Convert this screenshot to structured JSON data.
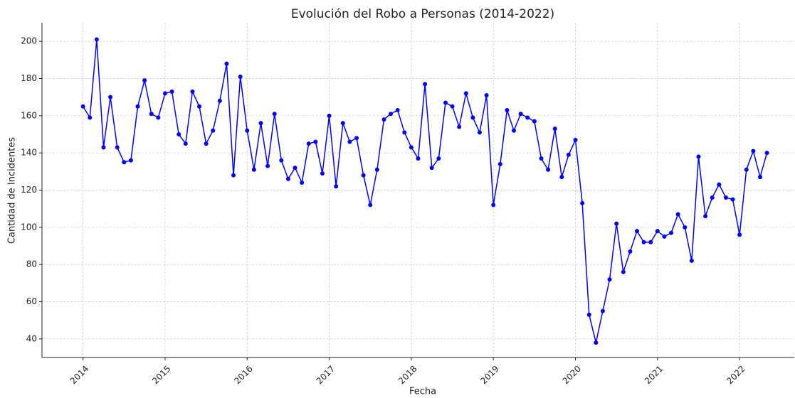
{
  "chart_data": {
    "type": "line",
    "title": "Evolución del Robo a Personas (2014-2022)",
    "xlabel": "Fecha",
    "ylabel": "Cantidad de Incidentes",
    "x": [
      "2014-01",
      "2014-02",
      "2014-03",
      "2014-04",
      "2014-05",
      "2014-06",
      "2014-07",
      "2014-08",
      "2014-09",
      "2014-10",
      "2014-11",
      "2014-12",
      "2015-01",
      "2015-02",
      "2015-03",
      "2015-04",
      "2015-05",
      "2015-06",
      "2015-07",
      "2015-08",
      "2015-09",
      "2015-10",
      "2015-11",
      "2015-12",
      "2016-01",
      "2016-02",
      "2016-03",
      "2016-04",
      "2016-05",
      "2016-06",
      "2016-07",
      "2016-08",
      "2016-09",
      "2016-10",
      "2016-11",
      "2016-12",
      "2017-01",
      "2017-02",
      "2017-03",
      "2017-04",
      "2017-05",
      "2017-06",
      "2017-07",
      "2017-08",
      "2017-09",
      "2017-10",
      "2017-11",
      "2017-12",
      "2018-01",
      "2018-02",
      "2018-03",
      "2018-04",
      "2018-05",
      "2018-06",
      "2018-07",
      "2018-08",
      "2018-09",
      "2018-10",
      "2018-11",
      "2018-12",
      "2019-01",
      "2019-02",
      "2019-03",
      "2019-04",
      "2019-05",
      "2019-06",
      "2019-07",
      "2019-08",
      "2019-09",
      "2019-10",
      "2019-11",
      "2019-12",
      "2020-01",
      "2020-02",
      "2020-03",
      "2020-04",
      "2020-05",
      "2020-06",
      "2020-07",
      "2020-08",
      "2020-09",
      "2020-10",
      "2020-11",
      "2020-12",
      "2021-01",
      "2021-02",
      "2021-03",
      "2021-04",
      "2021-05",
      "2021-06",
      "2021-07",
      "2021-08",
      "2021-09",
      "2021-10",
      "2021-11",
      "2021-12",
      "2022-01",
      "2022-02",
      "2022-03",
      "2022-04",
      "2022-05"
    ],
    "series": [
      {
        "name": "Robo a Personas",
        "color": "#0000ff",
        "values": [
          165,
          159,
          201,
          143,
          170,
          143,
          135,
          136,
          165,
          179,
          161,
          159,
          172,
          173,
          150,
          145,
          173,
          165,
          145,
          152,
          168,
          188,
          128,
          181,
          152,
          131,
          156,
          133,
          161,
          136,
          126,
          132,
          124,
          145,
          146,
          129,
          160,
          122,
          156,
          146,
          148,
          128,
          112,
          131,
          158,
          161,
          163,
          151,
          143,
          137,
          177,
          132,
          137,
          167,
          165,
          154,
          172,
          159,
          151,
          171,
          112,
          134,
          163,
          152,
          161,
          159,
          157,
          137,
          131,
          153,
          127,
          139,
          147,
          113,
          53,
          38,
          55,
          72,
          102,
          76,
          87,
          98,
          92,
          92,
          98,
          95,
          97,
          107,
          100,
          82,
          138,
          106,
          116,
          123,
          116,
          115,
          96,
          131,
          141,
          127,
          140
        ]
      }
    ],
    "xlim": [
      "2013-07",
      "2022-09"
    ],
    "xticks": [
      "2014",
      "2015",
      "2016",
      "2017",
      "2018",
      "2019",
      "2020",
      "2021",
      "2022"
    ],
    "ylim": [
      30,
      210
    ],
    "yticks": [
      40,
      60,
      80,
      100,
      120,
      140,
      160,
      180,
      200
    ],
    "grid": true
  }
}
